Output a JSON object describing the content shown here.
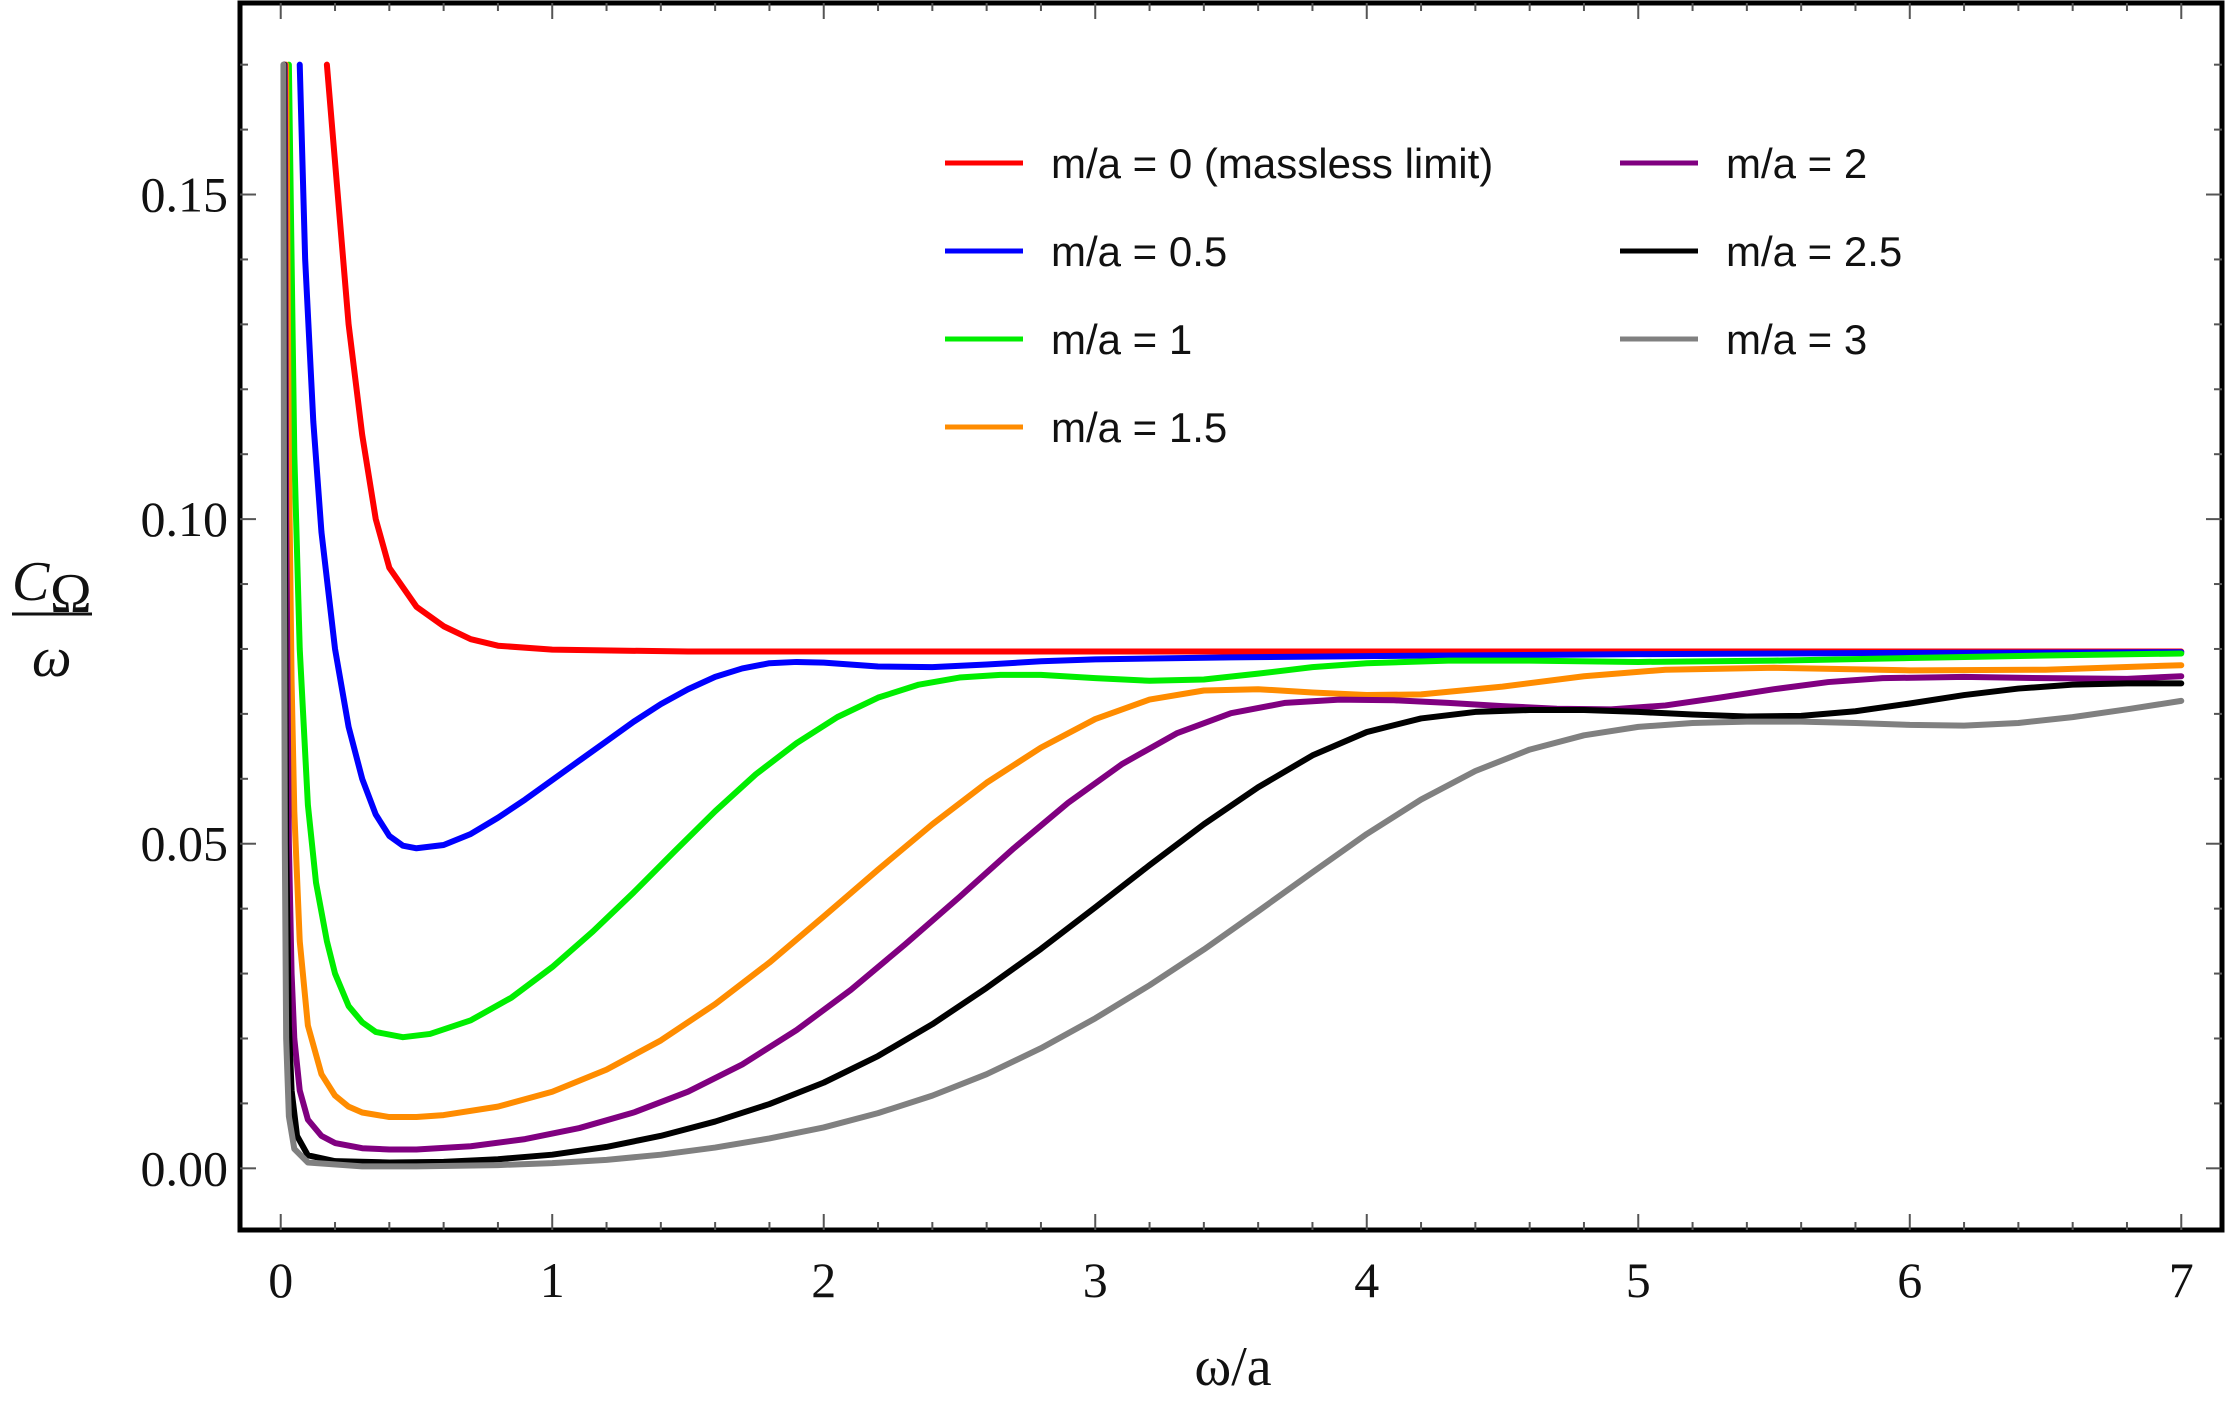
{
  "chart_data": {
    "type": "line",
    "title": "",
    "xlabel": "ω/a",
    "ylabel_numerator": "C",
    "ylabel_subscript": "Ω",
    "ylabel_denominator": "ω",
    "xlim": [
      -0.15,
      7.15
    ],
    "ylim": [
      -0.0095,
      0.1795
    ],
    "x_ticks": [
      {
        "value": 0,
        "label": "0"
      },
      {
        "value": 1,
        "label": "1"
      },
      {
        "value": 2,
        "label": "2"
      },
      {
        "value": 3,
        "label": "3"
      },
      {
        "value": 4,
        "label": "4"
      },
      {
        "value": 5,
        "label": "5"
      },
      {
        "value": 6,
        "label": "6"
      },
      {
        "value": 7,
        "label": "7"
      }
    ],
    "y_ticks": [
      {
        "value": 0.0,
        "label": "0.00"
      },
      {
        "value": 0.05,
        "label": "0.05"
      },
      {
        "value": 0.1,
        "label": "0.10"
      },
      {
        "value": 0.15,
        "label": "0.15"
      }
    ],
    "legend_position": "top-right",
    "series": [
      {
        "name": "m/a = 0 (massless limit)",
        "color": "#ff0000",
        "points": [
          [
            0.17,
            0.17
          ],
          [
            0.2,
            0.155
          ],
          [
            0.25,
            0.13
          ],
          [
            0.3,
            0.113
          ],
          [
            0.35,
            0.1
          ],
          [
            0.4,
            0.0925
          ],
          [
            0.5,
            0.0865
          ],
          [
            0.6,
            0.0835
          ],
          [
            0.7,
            0.0815
          ],
          [
            0.8,
            0.0805
          ],
          [
            1.0,
            0.0799
          ],
          [
            1.5,
            0.0796
          ],
          [
            2.0,
            0.0796
          ],
          [
            3.0,
            0.0796
          ],
          [
            4.0,
            0.0796
          ],
          [
            5.0,
            0.0796
          ],
          [
            6.0,
            0.0796
          ],
          [
            7.0,
            0.0796
          ]
        ]
      },
      {
        "name": "m/a = 0.5",
        "color": "#0000ff",
        "points": [
          [
            0.07,
            0.17
          ],
          [
            0.09,
            0.14
          ],
          [
            0.12,
            0.115
          ],
          [
            0.15,
            0.098
          ],
          [
            0.2,
            0.08
          ],
          [
            0.25,
            0.068
          ],
          [
            0.3,
            0.06
          ],
          [
            0.35,
            0.0545
          ],
          [
            0.4,
            0.0512
          ],
          [
            0.45,
            0.0497
          ],
          [
            0.5,
            0.0493
          ],
          [
            0.6,
            0.0498
          ],
          [
            0.7,
            0.0515
          ],
          [
            0.8,
            0.054
          ],
          [
            0.9,
            0.0568
          ],
          [
            1.0,
            0.0598
          ],
          [
            1.1,
            0.0628
          ],
          [
            1.2,
            0.0658
          ],
          [
            1.3,
            0.0688
          ],
          [
            1.4,
            0.0715
          ],
          [
            1.5,
            0.0738
          ],
          [
            1.6,
            0.0757
          ],
          [
            1.7,
            0.077
          ],
          [
            1.8,
            0.0778
          ],
          [
            1.9,
            0.078
          ],
          [
            2.0,
            0.0779
          ],
          [
            2.2,
            0.0773
          ],
          [
            2.4,
            0.0772
          ],
          [
            2.6,
            0.0776
          ],
          [
            2.8,
            0.0781
          ],
          [
            3.0,
            0.0784
          ],
          [
            3.5,
            0.0787
          ],
          [
            4.0,
            0.0789
          ],
          [
            5.0,
            0.0792
          ],
          [
            6.0,
            0.0794
          ],
          [
            7.0,
            0.0795
          ]
        ]
      },
      {
        "name": "m/a = 1",
        "color": "#00ee00",
        "points": [
          [
            0.03,
            0.17
          ],
          [
            0.04,
            0.14
          ],
          [
            0.05,
            0.11
          ],
          [
            0.07,
            0.08
          ],
          [
            0.1,
            0.056
          ],
          [
            0.13,
            0.044
          ],
          [
            0.17,
            0.035
          ],
          [
            0.2,
            0.03
          ],
          [
            0.25,
            0.025
          ],
          [
            0.3,
            0.0225
          ],
          [
            0.35,
            0.021
          ],
          [
            0.45,
            0.0202
          ],
          [
            0.55,
            0.0207
          ],
          [
            0.7,
            0.0228
          ],
          [
            0.85,
            0.0263
          ],
          [
            1.0,
            0.031
          ],
          [
            1.15,
            0.0365
          ],
          [
            1.3,
            0.0425
          ],
          [
            1.45,
            0.0488
          ],
          [
            1.6,
            0.055
          ],
          [
            1.75,
            0.0607
          ],
          [
            1.9,
            0.0655
          ],
          [
            2.05,
            0.0695
          ],
          [
            2.2,
            0.0725
          ],
          [
            2.35,
            0.0745
          ],
          [
            2.5,
            0.0756
          ],
          [
            2.65,
            0.076
          ],
          [
            2.8,
            0.076
          ],
          [
            3.0,
            0.0755
          ],
          [
            3.2,
            0.0751
          ],
          [
            3.4,
            0.0753
          ],
          [
            3.6,
            0.0762
          ],
          [
            3.8,
            0.0772
          ],
          [
            4.0,
            0.0778
          ],
          [
            4.3,
            0.0782
          ],
          [
            4.6,
            0.0782
          ],
          [
            5.0,
            0.078
          ],
          [
            5.5,
            0.0782
          ],
          [
            6.0,
            0.0786
          ],
          [
            6.5,
            0.079
          ],
          [
            7.0,
            0.0793
          ]
        ]
      },
      {
        "name": "m/a = 1.5",
        "color": "#ff8c00",
        "points": [
          [
            0.02,
            0.17
          ],
          [
            0.03,
            0.11
          ],
          [
            0.04,
            0.075
          ],
          [
            0.05,
            0.055
          ],
          [
            0.07,
            0.035
          ],
          [
            0.1,
            0.022
          ],
          [
            0.15,
            0.0145
          ],
          [
            0.2,
            0.0112
          ],
          [
            0.25,
            0.0095
          ],
          [
            0.3,
            0.0086
          ],
          [
            0.4,
            0.0079
          ],
          [
            0.5,
            0.0079
          ],
          [
            0.6,
            0.0082
          ],
          [
            0.8,
            0.0095
          ],
          [
            1.0,
            0.0118
          ],
          [
            1.2,
            0.0152
          ],
          [
            1.4,
            0.0197
          ],
          [
            1.6,
            0.0253
          ],
          [
            1.8,
            0.0317
          ],
          [
            2.0,
            0.0388
          ],
          [
            2.2,
            0.046
          ],
          [
            2.4,
            0.053
          ],
          [
            2.6,
            0.0594
          ],
          [
            2.8,
            0.0648
          ],
          [
            3.0,
            0.0692
          ],
          [
            3.2,
            0.0722
          ],
          [
            3.4,
            0.0736
          ],
          [
            3.6,
            0.0738
          ],
          [
            3.8,
            0.0733
          ],
          [
            4.0,
            0.0729
          ],
          [
            4.2,
            0.073
          ],
          [
            4.5,
            0.0742
          ],
          [
            4.8,
            0.0758
          ],
          [
            5.1,
            0.0768
          ],
          [
            5.5,
            0.0771
          ],
          [
            6.0,
            0.0767
          ],
          [
            6.5,
            0.0768
          ],
          [
            7.0,
            0.0775
          ]
        ]
      },
      {
        "name": "m/a = 2",
        "color": "#800080",
        "points": [
          [
            0.015,
            0.17
          ],
          [
            0.02,
            0.1
          ],
          [
            0.03,
            0.05
          ],
          [
            0.04,
            0.03
          ],
          [
            0.05,
            0.02
          ],
          [
            0.07,
            0.012
          ],
          [
            0.1,
            0.0075
          ],
          [
            0.15,
            0.005
          ],
          [
            0.2,
            0.0039
          ],
          [
            0.3,
            0.0031
          ],
          [
            0.4,
            0.0029
          ],
          [
            0.5,
            0.0029
          ],
          [
            0.7,
            0.0034
          ],
          [
            0.9,
            0.0045
          ],
          [
            1.1,
            0.0062
          ],
          [
            1.3,
            0.0086
          ],
          [
            1.5,
            0.0118
          ],
          [
            1.7,
            0.016
          ],
          [
            1.9,
            0.0213
          ],
          [
            2.1,
            0.0275
          ],
          [
            2.3,
            0.0345
          ],
          [
            2.5,
            0.0418
          ],
          [
            2.7,
            0.0493
          ],
          [
            2.9,
            0.0563
          ],
          [
            3.1,
            0.0623
          ],
          [
            3.3,
            0.067
          ],
          [
            3.5,
            0.0701
          ],
          [
            3.7,
            0.0717
          ],
          [
            3.9,
            0.0722
          ],
          [
            4.1,
            0.0721
          ],
          [
            4.3,
            0.0717
          ],
          [
            4.5,
            0.0712
          ],
          [
            4.7,
            0.0708
          ],
          [
            4.9,
            0.0707
          ],
          [
            5.1,
            0.0713
          ],
          [
            5.3,
            0.0725
          ],
          [
            5.5,
            0.0738
          ],
          [
            5.7,
            0.0749
          ],
          [
            5.9,
            0.0755
          ],
          [
            6.2,
            0.0757
          ],
          [
            6.5,
            0.0755
          ],
          [
            6.8,
            0.0754
          ],
          [
            7.0,
            0.0758
          ]
        ]
      },
      {
        "name": "m/a = 2.5",
        "color": "#000000",
        "points": [
          [
            0.012,
            0.17
          ],
          [
            0.015,
            0.1
          ],
          [
            0.02,
            0.05
          ],
          [
            0.03,
            0.022
          ],
          [
            0.04,
            0.012
          ],
          [
            0.06,
            0.005
          ],
          [
            0.1,
            0.002
          ],
          [
            0.2,
            0.0011
          ],
          [
            0.4,
            0.0009
          ],
          [
            0.6,
            0.001
          ],
          [
            0.8,
            0.0014
          ],
          [
            1.0,
            0.0021
          ],
          [
            1.2,
            0.0033
          ],
          [
            1.4,
            0.005
          ],
          [
            1.6,
            0.0072
          ],
          [
            1.8,
            0.0099
          ],
          [
            2.0,
            0.0132
          ],
          [
            2.2,
            0.0173
          ],
          [
            2.4,
            0.0222
          ],
          [
            2.6,
            0.0278
          ],
          [
            2.8,
            0.0338
          ],
          [
            3.0,
            0.0402
          ],
          [
            3.2,
            0.0467
          ],
          [
            3.4,
            0.053
          ],
          [
            3.6,
            0.0587
          ],
          [
            3.8,
            0.0636
          ],
          [
            4.0,
            0.0672
          ],
          [
            4.2,
            0.0693
          ],
          [
            4.4,
            0.0703
          ],
          [
            4.6,
            0.0706
          ],
          [
            4.8,
            0.0706
          ],
          [
            5.0,
            0.0703
          ],
          [
            5.2,
            0.0699
          ],
          [
            5.4,
            0.0696
          ],
          [
            5.6,
            0.0697
          ],
          [
            5.8,
            0.0704
          ],
          [
            6.0,
            0.0716
          ],
          [
            6.2,
            0.0729
          ],
          [
            6.4,
            0.0739
          ],
          [
            6.6,
            0.0745
          ],
          [
            6.8,
            0.0747
          ],
          [
            7.0,
            0.0747
          ]
        ]
      },
      {
        "name": "m/a = 3",
        "color": "#808080",
        "points": [
          [
            0.01,
            0.17
          ],
          [
            0.012,
            0.1
          ],
          [
            0.015,
            0.05
          ],
          [
            0.02,
            0.02
          ],
          [
            0.03,
            0.008
          ],
          [
            0.05,
            0.003
          ],
          [
            0.1,
            0.0009
          ],
          [
            0.3,
            0.0003
          ],
          [
            0.5,
            0.0003
          ],
          [
            0.8,
            0.0005
          ],
          [
            1.0,
            0.0008
          ],
          [
            1.2,
            0.0013
          ],
          [
            1.4,
            0.0021
          ],
          [
            1.6,
            0.0032
          ],
          [
            1.8,
            0.0046
          ],
          [
            2.0,
            0.0063
          ],
          [
            2.2,
            0.0085
          ],
          [
            2.4,
            0.0112
          ],
          [
            2.6,
            0.0145
          ],
          [
            2.8,
            0.0185
          ],
          [
            3.0,
            0.0231
          ],
          [
            3.2,
            0.0282
          ],
          [
            3.4,
            0.0337
          ],
          [
            3.6,
            0.0396
          ],
          [
            3.8,
            0.0456
          ],
          [
            4.0,
            0.0515
          ],
          [
            4.2,
            0.0568
          ],
          [
            4.4,
            0.0612
          ],
          [
            4.6,
            0.0645
          ],
          [
            4.8,
            0.0667
          ],
          [
            5.0,
            0.068
          ],
          [
            5.2,
            0.0686
          ],
          [
            5.4,
            0.0688
          ],
          [
            5.6,
            0.0688
          ],
          [
            5.8,
            0.0686
          ],
          [
            6.0,
            0.0683
          ],
          [
            6.2,
            0.0682
          ],
          [
            6.4,
            0.0686
          ],
          [
            6.6,
            0.0695
          ],
          [
            6.8,
            0.0707
          ],
          [
            7.0,
            0.072
          ]
        ]
      }
    ]
  }
}
